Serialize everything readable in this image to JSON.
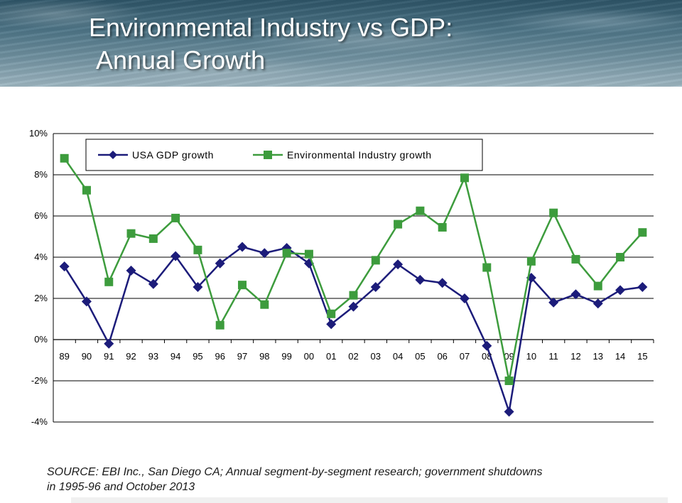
{
  "slide": {
    "title_line1": "Environmental Industry vs GDP:",
    "title_line2": "Annual Growth",
    "source_line1": "SOURCE:  EBI Inc., San Diego CA; Annual segment-by-segment research; government shutdowns",
    "source_line2": "in 1995-96 and October 2013"
  },
  "colors": {
    "gdp": "#1c1c7a",
    "environmental": "#3d9c3d"
  },
  "chart_data": {
    "type": "line",
    "x": [
      "89",
      "90",
      "91",
      "92",
      "93",
      "94",
      "95",
      "96",
      "97",
      "98",
      "99",
      "00",
      "01",
      "02",
      "03",
      "04",
      "05",
      "06",
      "07",
      "08",
      "09",
      "10",
      "11",
      "12",
      "13",
      "14",
      "15"
    ],
    "y_ticks": [
      "10%",
      "8%",
      "6%",
      "4%",
      "2%",
      "0%",
      "-2%",
      "-4%"
    ],
    "ylim": [
      -4,
      10
    ],
    "grid": true,
    "legend_position": "top",
    "series": [
      {
        "name": "USA  GDP growth",
        "marker": "diamond",
        "values": [
          3.55,
          1.85,
          -0.2,
          3.35,
          2.7,
          4.05,
          2.55,
          3.7,
          4.5,
          4.2,
          4.45,
          3.7,
          0.75,
          1.6,
          2.55,
          3.65,
          2.9,
          2.75,
          2.0,
          -0.3,
          -3.5,
          3.0,
          1.8,
          2.2,
          1.75,
          2.4,
          2.55
        ]
      },
      {
        "name": "Environmental Industry growth",
        "marker": "square",
        "values": [
          8.8,
          7.25,
          2.8,
          5.15,
          4.9,
          5.9,
          4.35,
          0.7,
          2.65,
          1.7,
          4.2,
          4.15,
          1.25,
          2.15,
          3.85,
          5.6,
          6.25,
          5.45,
          7.85,
          3.5,
          -2.0,
          3.8,
          6.15,
          3.9,
          2.6,
          4.0,
          5.2
        ]
      }
    ]
  }
}
